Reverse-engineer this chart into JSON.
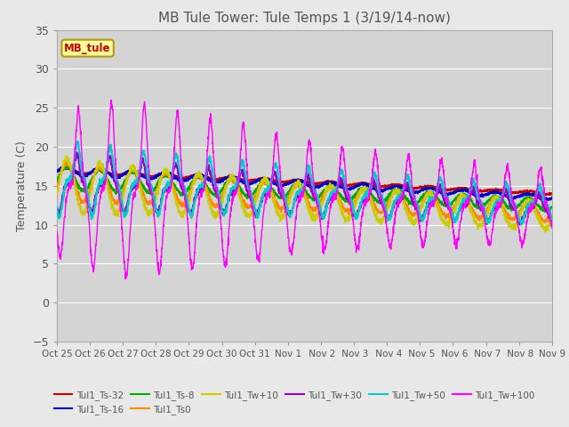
{
  "title": "MB Tule Tower: Tule Temps 1 (3/19/14-now)",
  "ylabel": "Temperature (C)",
  "ylim": [
    -5,
    35
  ],
  "yticks": [
    -5,
    0,
    5,
    10,
    15,
    20,
    25,
    30,
    35
  ],
  "xtick_labels": [
    "Oct 25",
    "Oct 26",
    "Oct 27",
    "Oct 28",
    "Oct 29",
    "Oct 30",
    "Oct 31",
    "Nov 1",
    " Nov 2",
    " Nov 3",
    " Nov 4",
    " Nov 5",
    " Nov 6",
    " Nov 7",
    " Nov 8",
    "Nov 9"
  ],
  "fig_bg": "#e8e8e8",
  "plot_bg": "#d4d4d4",
  "grid_color": "#ffffff",
  "legend_label": "MB_tule",
  "legend_box_fc": "#ffff99",
  "legend_box_ec": "#b8960c",
  "series": {
    "Tul1_Ts-32": {
      "color": "#cc0000",
      "lw": 1.5
    },
    "Tul1_Ts-16": {
      "color": "#0000cc",
      "lw": 1.5
    },
    "Tul1_Ts-8": {
      "color": "#00aa00",
      "lw": 1.5
    },
    "Tul1_Ts0": {
      "color": "#ff8800",
      "lw": 1.5
    },
    "Tul1_Tw+10": {
      "color": "#cccc00",
      "lw": 1.5
    },
    "Tul1_Tw+30": {
      "color": "#9900cc",
      "lw": 1.5
    },
    "Tul1_Tw+50": {
      "color": "#00cccc",
      "lw": 1.5
    },
    "Tul1_Tw+100": {
      "color": "#ff00ff",
      "lw": 1.0
    }
  },
  "legend_order": [
    "Tul1_Ts-32",
    "Tul1_Ts-16",
    "Tul1_Ts-8",
    "Tul1_Ts0",
    "Tul1_Tw+10",
    "Tul1_Tw+30",
    "Tul1_Tw+50",
    "Tul1_Tw+100"
  ]
}
